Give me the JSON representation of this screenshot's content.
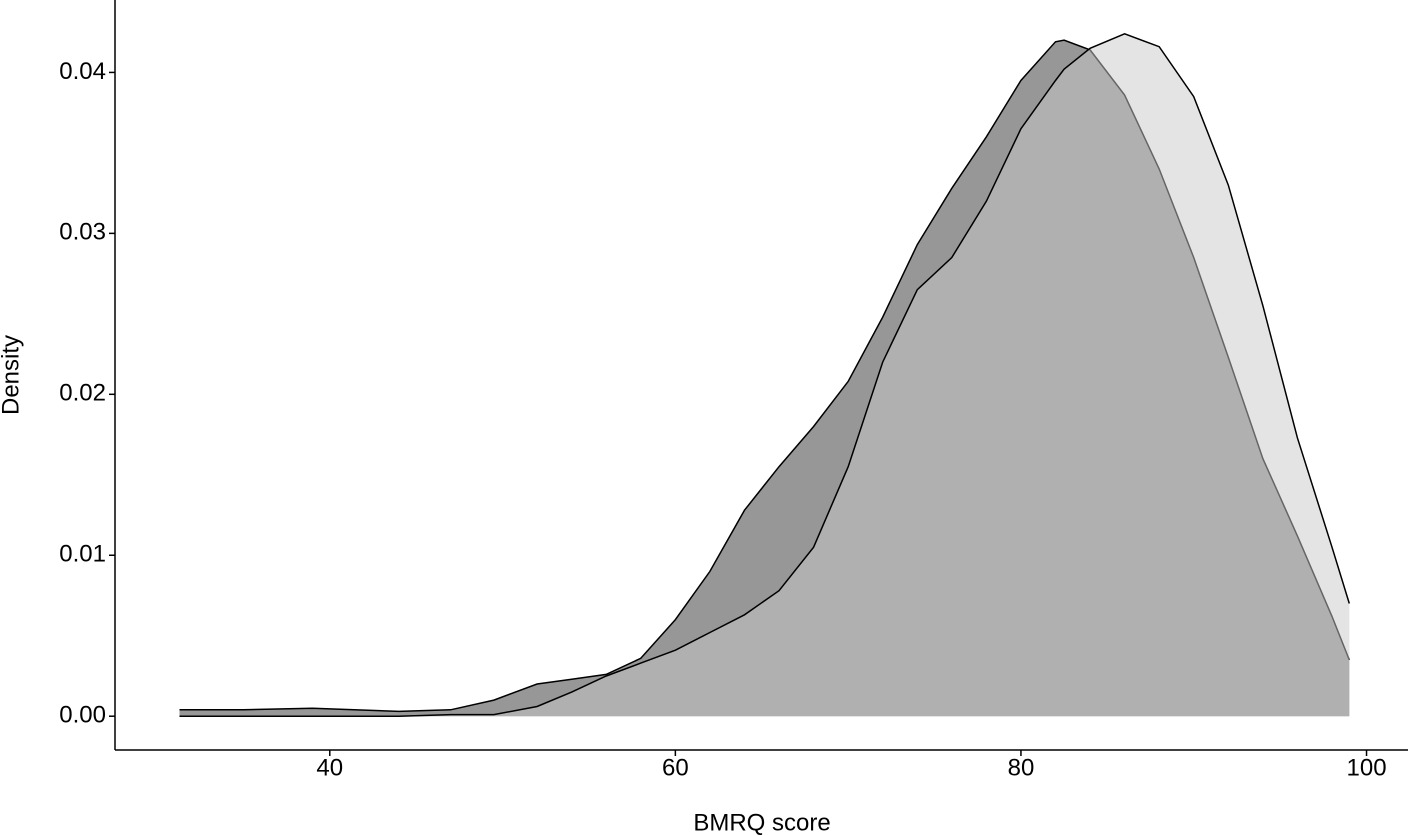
{
  "chart_data": {
    "type": "density",
    "x_label": "BMRQ score",
    "y_label": "Density",
    "x": [
      31.3,
      35,
      39,
      44,
      47,
      49.5,
      52,
      54,
      56,
      58,
      60,
      62,
      64,
      66,
      68,
      70,
      72,
      74,
      76,
      78,
      80,
      82,
      82.5,
      84,
      86,
      88,
      90,
      92,
      94,
      96,
      98,
      99
    ],
    "series": [
      {
        "color": "#979797",
        "opacity": 1,
        "line_color": "#000000",
        "values": [
          0.0004,
          0.0004,
          0.0005,
          0.0003,
          0.0004,
          0.001,
          0.002,
          0.0023,
          0.0026,
          0.0036,
          0.006,
          0.009,
          0.0128,
          0.0155,
          0.018,
          0.0208,
          0.0248,
          0.0293,
          0.0328,
          0.036,
          0.0395,
          0.0419,
          0.042,
          0.0414,
          0.0386,
          0.034,
          0.0285,
          0.0223,
          0.016,
          0.0112,
          0.0062,
          0.0035
        ]
      },
      {
        "color": "#c9c9c9",
        "opacity": 0.5,
        "line_color": "#000000",
        "values": [
          0,
          0,
          0,
          0,
          0.0001,
          0.0001,
          0.0006,
          0.0015,
          0.0025,
          0.0033,
          0.0041,
          0.0052,
          0.0063,
          0.0078,
          0.0105,
          0.0155,
          0.022,
          0.0265,
          0.0285,
          0.032,
          0.0365,
          0.0395,
          0.0402,
          0.0415,
          0.0424,
          0.0416,
          0.0385,
          0.033,
          0.0255,
          0.0173,
          0.0105,
          0.007
        ]
      }
    ],
    "xlim": [
      27.57,
      102.4
    ],
    "xticks": [
      40,
      60,
      80,
      100
    ],
    "ylim": [
      -0.0021,
      0.0445
    ],
    "yticks": [
      {
        "value": 0,
        "label": "0.00"
      },
      0.01,
      0.02,
      0.03,
      0.04
    ],
    "grid": false
  }
}
